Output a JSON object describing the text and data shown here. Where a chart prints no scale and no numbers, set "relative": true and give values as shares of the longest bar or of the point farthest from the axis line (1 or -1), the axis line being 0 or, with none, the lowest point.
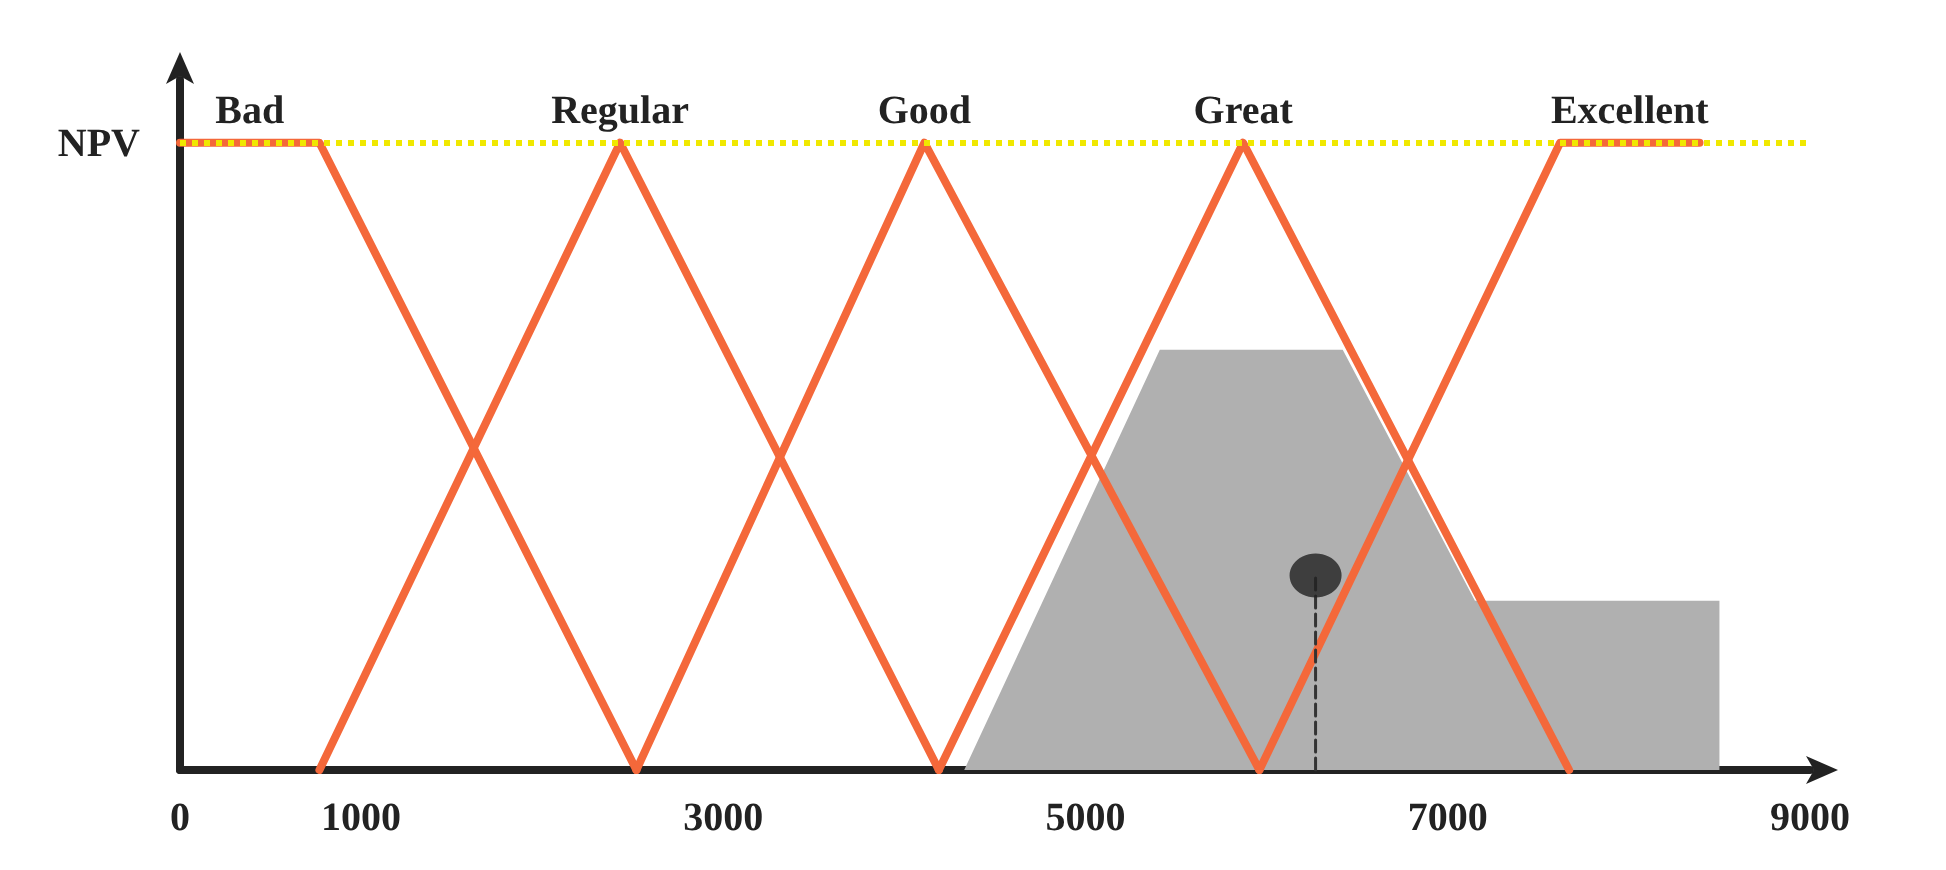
{
  "chart_data": {
    "type": "line",
    "relative": true,
    "ylabel": "NPV",
    "legend": false,
    "grid": false,
    "marker": "none",
    "line_style": "solid",
    "xlim": [
      0,
      9000
    ],
    "xticks": [
      0,
      1000,
      3000,
      5000,
      7000,
      9000
    ],
    "series": [
      {
        "name": "Bad",
        "color": "#f4683a",
        "x": [
          0,
          770,
          2520
        ],
        "values": [
          1,
          1,
          0
        ]
      },
      {
        "name": "Regular",
        "color": "#f4683a",
        "x": [
          770,
          2430,
          4190
        ],
        "values": [
          0,
          1,
          0
        ]
      },
      {
        "name": "Good",
        "color": "#f4683a",
        "x": [
          2520,
          4110,
          5960
        ],
        "values": [
          0,
          1,
          0
        ]
      },
      {
        "name": "Great",
        "color": "#f4683a",
        "x": [
          4190,
          5870,
          7670
        ],
        "values": [
          0,
          1,
          0
        ]
      },
      {
        "name": "Excellent",
        "color": "#f4683a",
        "x": [
          5960,
          7620,
          8390
        ],
        "values": [
          0,
          1,
          1
        ]
      },
      {
        "type": "area",
        "color": "#b0b0b0",
        "x": [
          4330,
          5410,
          6420,
          7150,
          8500,
          8500
        ],
        "values": [
          0,
          0.67,
          0.67,
          0.27,
          0.27,
          0
        ]
      },
      {
        "type": "line",
        "line_style": "dashed",
        "color": "#333333",
        "x": [
          6270,
          6270
        ],
        "values": [
          0,
          0.31
        ]
      },
      {
        "type": "scatter",
        "marker": "circle",
        "color": "#222222",
        "x": [
          6270
        ],
        "values": [
          0.31
        ]
      }
    ],
    "ref_lines": [
      {
        "axis": "y",
        "value": 1,
        "color": "#f0e800",
        "line_style": "dotted"
      }
    ]
  }
}
